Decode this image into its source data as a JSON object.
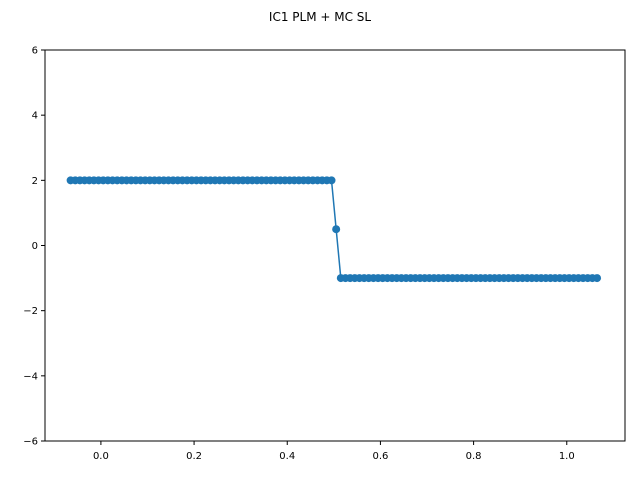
{
  "chart_data": {
    "type": "line",
    "title": "IC1 PLM + MC SL",
    "xlabel": "",
    "ylabel": "",
    "xlim": [
      -0.12,
      1.125
    ],
    "ylim": [
      -6,
      6
    ],
    "xticks": [
      0.0,
      0.2,
      0.4,
      0.6,
      0.8,
      1.0
    ],
    "xtick_labels": [
      "0.0",
      "0.2",
      "0.4",
      "0.6",
      "0.8",
      "1.0"
    ],
    "yticks": [
      -6,
      -4,
      -2,
      0,
      2,
      4,
      6
    ],
    "ytick_labels": [
      "−6",
      "−4",
      "−2",
      "0",
      "2",
      "4",
      "6"
    ],
    "grid": false,
    "legend": false,
    "series": [
      {
        "color": "#1f77b4",
        "marker": "circle",
        "x": [
          -0.065,
          -0.055,
          -0.045,
          -0.035,
          -0.025,
          -0.015,
          -0.005,
          0.005,
          0.015,
          0.025,
          0.035,
          0.045,
          0.055,
          0.065,
          0.075,
          0.085,
          0.095,
          0.105,
          0.115,
          0.125,
          0.135,
          0.145,
          0.155,
          0.165,
          0.175,
          0.185,
          0.195,
          0.205,
          0.215,
          0.225,
          0.235,
          0.245,
          0.255,
          0.265,
          0.275,
          0.285,
          0.295,
          0.305,
          0.315,
          0.325,
          0.335,
          0.345,
          0.355,
          0.365,
          0.375,
          0.385,
          0.395,
          0.405,
          0.415,
          0.425,
          0.435,
          0.445,
          0.455,
          0.465,
          0.475,
          0.485,
          0.495,
          0.505,
          0.515,
          0.525,
          0.535,
          0.545,
          0.555,
          0.565,
          0.575,
          0.585,
          0.595,
          0.605,
          0.615,
          0.625,
          0.635,
          0.645,
          0.655,
          0.665,
          0.675,
          0.685,
          0.695,
          0.705,
          0.715,
          0.725,
          0.735,
          0.745,
          0.755,
          0.765,
          0.775,
          0.785,
          0.795,
          0.805,
          0.815,
          0.825,
          0.835,
          0.845,
          0.855,
          0.865,
          0.875,
          0.885,
          0.895,
          0.905,
          0.915,
          0.925,
          0.935,
          0.945,
          0.955,
          0.965,
          0.975,
          0.985,
          0.995,
          1.005,
          1.015,
          1.025,
          1.035,
          1.045,
          1.055,
          1.065
        ],
        "y": [
          2,
          2,
          2,
          2,
          2,
          2,
          2,
          2,
          2,
          2,
          2,
          2,
          2,
          2,
          2,
          2,
          2,
          2,
          2,
          2,
          2,
          2,
          2,
          2,
          2,
          2,
          2,
          2,
          2,
          2,
          2,
          2,
          2,
          2,
          2,
          2,
          2,
          2,
          2,
          2,
          2,
          2,
          2,
          2,
          2,
          2,
          2,
          2,
          2,
          2,
          2,
          2,
          2,
          2,
          2,
          2,
          2,
          0.5,
          -1,
          -1,
          -1,
          -1,
          -1,
          -1,
          -1,
          -1,
          -1,
          -1,
          -1,
          -1,
          -1,
          -1,
          -1,
          -1,
          -1,
          -1,
          -1,
          -1,
          -1,
          -1,
          -1,
          -1,
          -1,
          -1,
          -1,
          -1,
          -1,
          -1,
          -1,
          -1,
          -1,
          -1,
          -1,
          -1,
          -1,
          -1,
          -1,
          -1,
          -1,
          -1,
          -1,
          -1,
          -1,
          -1,
          -1,
          -1,
          -1,
          -1,
          -1,
          -1,
          -1,
          -1,
          -1,
          -1
        ]
      }
    ]
  }
}
